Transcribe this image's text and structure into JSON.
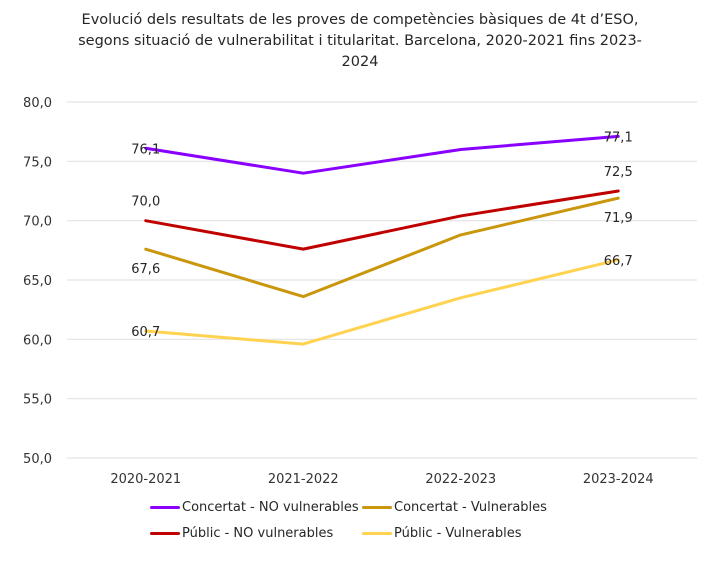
{
  "chart_data": {
    "type": "line",
    "title": "Evolució dels resultats de les proves de competències bàsiques de 4t d’ESO, segons situació de vulnerabilitat i titularitat. Barcelona, 2020-2021 fins 2023-2024",
    "xlabel": "",
    "ylabel": "",
    "categories": [
      "2020-2021",
      "2021-2022",
      "2022-2023",
      "2023-2024"
    ],
    "ylim": [
      50,
      80
    ],
    "yticks": [
      50,
      55,
      60,
      65,
      70,
      75,
      80
    ],
    "ytick_labels": [
      "50,0",
      "55,0",
      "60,0",
      "65,0",
      "70,0",
      "75,0",
      "80,0"
    ],
    "grid": true,
    "legend_position": "bottom",
    "series": [
      {
        "name": "Concertat - NO vulnerables",
        "color": "#8a00ff",
        "values": [
          76.1,
          74.0,
          76.0,
          77.1
        ],
        "labels": [
          {
            "index": 0,
            "text": "76,1",
            "pos": "on"
          },
          {
            "index": 3,
            "text": "77,1",
            "pos": "on"
          }
        ]
      },
      {
        "name": "Concertat - Vulnerables",
        "color": "#c9960c",
        "values": [
          67.6,
          63.6,
          68.8,
          71.9
        ],
        "labels": [
          {
            "index": 0,
            "text": "67,6",
            "pos": "below"
          },
          {
            "index": 3,
            "text": "71,9",
            "pos": "below"
          }
        ]
      },
      {
        "name": "Públic - NO vulnerables",
        "color": "#c00000",
        "values": [
          70.0,
          67.6,
          70.4,
          72.5
        ],
        "labels": [
          {
            "index": 0,
            "text": "70,0",
            "pos": "above"
          },
          {
            "index": 3,
            "text": "72,5",
            "pos": "above"
          }
        ]
      },
      {
        "name": "Públic - Vulnerables",
        "color": "#ffd24f",
        "values": [
          60.7,
          59.6,
          63.5,
          66.7
        ],
        "labels": [
          {
            "index": 0,
            "text": "60,7",
            "pos": "on"
          },
          {
            "index": 3,
            "text": "66,7",
            "pos": "on"
          }
        ]
      }
    ]
  }
}
